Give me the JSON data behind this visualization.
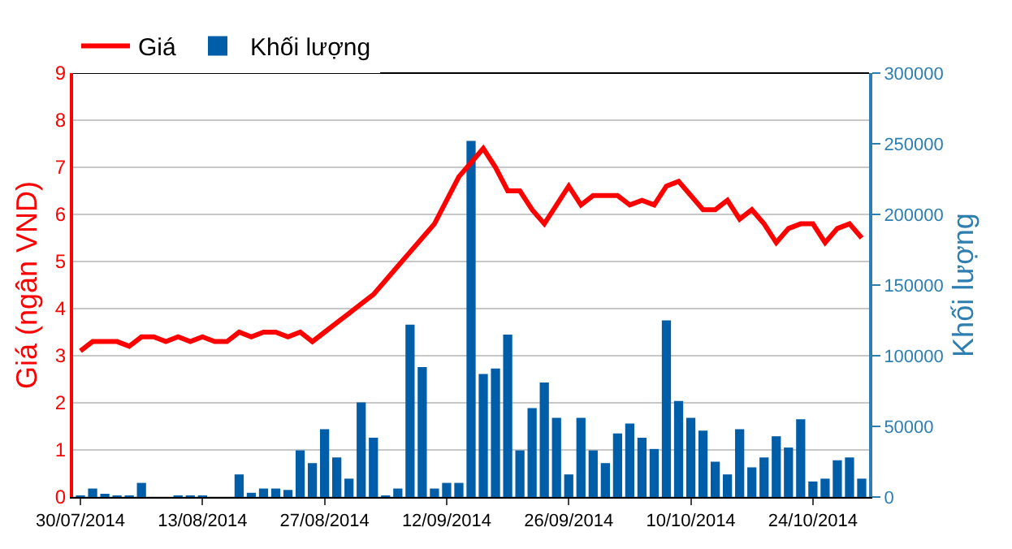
{
  "chart_data": {
    "type": "bar",
    "ylabel": "Giá (ngân VND)",
    "y2label": "Khối lượng",
    "categories": [
      "30/07/2014",
      null,
      null,
      null,
      null,
      null,
      null,
      null,
      null,
      null,
      "13/08/2014",
      null,
      null,
      null,
      null,
      null,
      null,
      null,
      null,
      null,
      "27/08/2014",
      null,
      null,
      null,
      null,
      null,
      null,
      null,
      null,
      null,
      "12/09/2014",
      null,
      null,
      null,
      null,
      null,
      null,
      null,
      null,
      null,
      "26/09/2014",
      null,
      null,
      null,
      null,
      null,
      null,
      null,
      null,
      null,
      "10/10/2014",
      null,
      null,
      null,
      null,
      null,
      null,
      null,
      null,
      null,
      "24/10/2014",
      null,
      null,
      null,
      null
    ],
    "series": [
      {
        "name": "Giá",
        "type": "line",
        "color": "#ff0000",
        "values": [
          3.1,
          3.3,
          3.3,
          3.3,
          3.2,
          3.4,
          3.4,
          3.3,
          3.4,
          3.3,
          3.4,
          3.3,
          3.3,
          3.5,
          3.4,
          3.5,
          3.5,
          3.4,
          3.5,
          3.3,
          3.5,
          3.7,
          3.9,
          4.1,
          4.3,
          4.6,
          4.9,
          5.2,
          5.5,
          5.8,
          6.3,
          6.8,
          7.1,
          7.4,
          7.0,
          6.5,
          6.5,
          6.1,
          5.8,
          6.2,
          6.6,
          6.2,
          6.4,
          6.4,
          6.4,
          6.2,
          6.3,
          6.2,
          6.6,
          6.7,
          6.4,
          6.1,
          6.1,
          6.3,
          5.9,
          6.1,
          5.8,
          5.4,
          5.7,
          5.8,
          5.8,
          5.4,
          5.7,
          5.8,
          5.5
        ]
      },
      {
        "name": "Khối lượng",
        "axis": "y2",
        "color": "#005ea8",
        "values": [
          1000,
          6000,
          2000,
          1000,
          1000,
          10000,
          0,
          0,
          1000,
          1000,
          1000,
          0,
          0,
          16000,
          3000,
          6000,
          6000,
          5000,
          33000,
          24000,
          48000,
          28000,
          13000,
          67000,
          42000,
          1000,
          6000,
          122000,
          92000,
          6000,
          10000,
          10000,
          252000,
          87000,
          91000,
          115000,
          33000,
          63000,
          81000,
          56000,
          16000,
          56000,
          33000,
          24000,
          45000,
          52000,
          42000,
          34000,
          125000,
          68000,
          56000,
          47000,
          25000,
          16000,
          48000,
          21000,
          28000,
          43000,
          35000,
          55000,
          11000,
          13000,
          26000,
          28000,
          13000
        ]
      }
    ],
    "ylim": [
      0,
      9
    ],
    "yticks": [
      0,
      1,
      2,
      3,
      4,
      5,
      6,
      7,
      8,
      9
    ],
    "y2lim": [
      0,
      300000
    ],
    "y2ticks": [
      0,
      50000,
      100000,
      150000,
      200000,
      250000,
      300000
    ],
    "grid": "y",
    "legend": "top left"
  }
}
